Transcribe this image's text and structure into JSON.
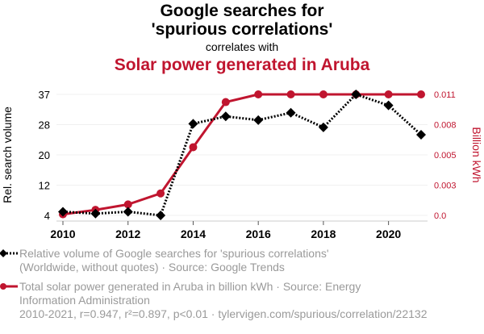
{
  "header": {
    "title": "Google searches for 'spurious correlations'",
    "connector": "correlates with",
    "subtitle": "Solar power generated in Aruba"
  },
  "colors": {
    "series1": "#000000",
    "series2": "#C0152F",
    "grid": "#f0f0f0",
    "axis": "#cccccc",
    "legend_text": "#9a9a9a"
  },
  "chart_data": {
    "type": "line",
    "title": "Google searches for 'spurious correlations' correlates with Solar power generated in Aruba",
    "x": [
      2010,
      2011,
      2012,
      2013,
      2014,
      2015,
      2016,
      2017,
      2018,
      2019,
      2020,
      2021
    ],
    "xticks": [
      "2010",
      "2012",
      "2014",
      "2016",
      "2018",
      "2020"
    ],
    "xlim": [
      2010,
      2021
    ],
    "xlabel": "",
    "ylabel": "Rel. search volume",
    "ylim": [
      4,
      37
    ],
    "yticks": [
      "37",
      "28",
      "20",
      "12",
      "4"
    ],
    "y2label": "Billion kWh",
    "y2lim": [
      0,
      0.011
    ],
    "y2ticks": [
      "0.011",
      "0.008",
      "0.005",
      "0.003",
      "0.0"
    ],
    "grid": true,
    "series": [
      {
        "name": "Relative volume of Google searches for 'spurious correlations' (Worldwide, without quotes) · Source: Google Trends",
        "axis": "left",
        "style": "dotted",
        "marker": "diamond",
        "values": [
          5,
          4.5,
          5,
          4,
          29,
          31,
          30,
          32,
          28,
          37,
          34,
          26
        ]
      },
      {
        "name": "Total solar power generated in Aruba in billion kWh · Source: Energy Information Administration",
        "axis": "right",
        "style": "solid",
        "marker": "circle",
        "values": [
          0.0001,
          0.0005,
          0.001,
          0.002,
          0.0062,
          0.0103,
          0.011,
          0.011,
          0.011,
          0.011,
          0.011,
          0.011
        ]
      }
    ],
    "legend_position": "bottom"
  },
  "legend": {
    "item1_line1": "Relative volume of Google searches for 'spurious correlations'",
    "item1_line2": "(Worldwide, without quotes) · Source: Google Trends",
    "item2_line1": "Total solar power generated in Aruba in billion kWh · Source: Energy",
    "item2_line2": "Information Administration"
  },
  "footer": {
    "stats": "2010-2021, r=0.947, r²=0.897, p<0.01 · tylervigen.com/spurious/correlation/22132"
  }
}
